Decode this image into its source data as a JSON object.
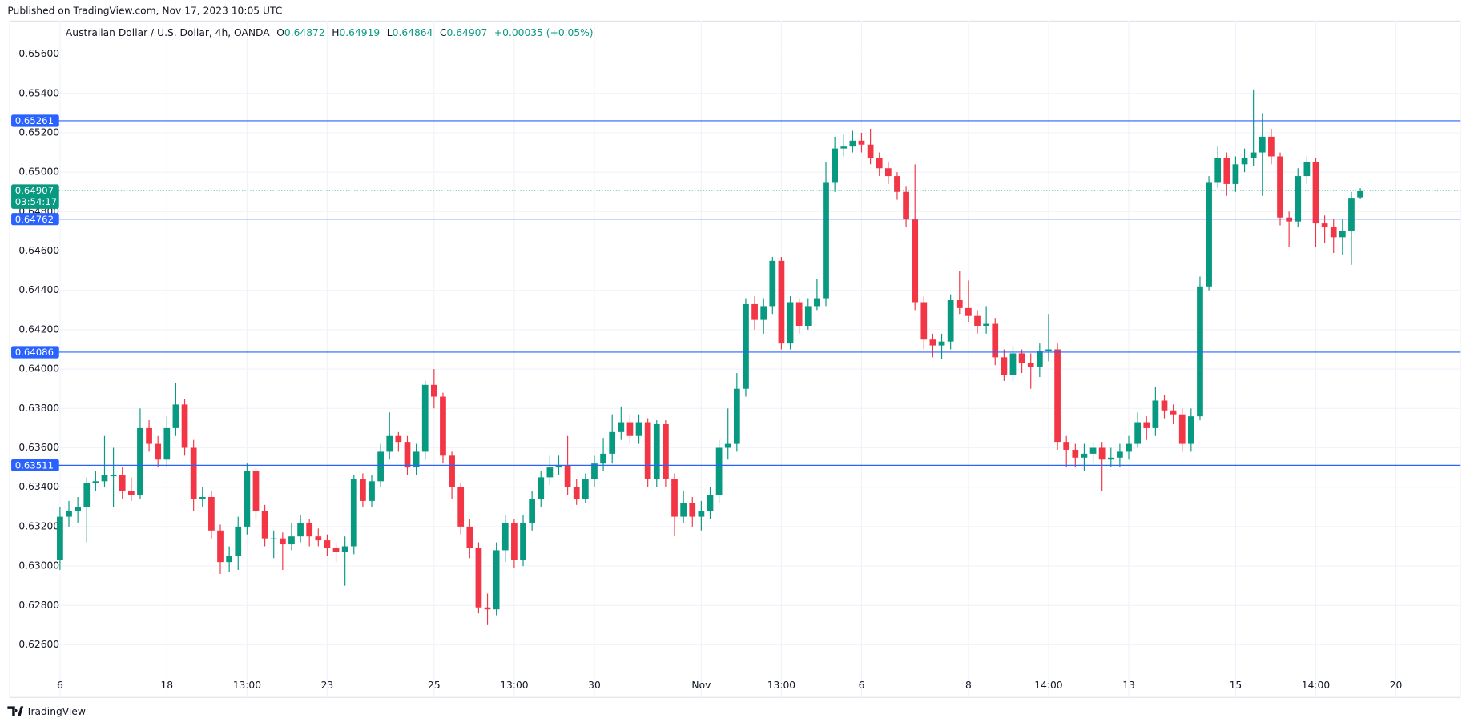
{
  "published": "Published on TradingView.com, Nov 17, 2023 10:05 UTC",
  "footer": "TradingView",
  "chart_data": {
    "type": "candlestick",
    "title": "Australian Dollar / U.S. Dollar, 4h, OANDA",
    "legend": [
      {
        "label": "O",
        "value": "0.64872"
      },
      {
        "label": "H",
        "value": "0.64919"
      },
      {
        "label": "L",
        "value": "0.64864"
      },
      {
        "label": "C",
        "value": "0.64907"
      }
    ],
    "change": "+0.00035 (+0.05%)",
    "up_color": "#089981",
    "down_color": "#f23645",
    "grid": true,
    "ylim": [
      0.6233,
      0.6577
    ],
    "yticks": [
      {
        "value": 0.626,
        "label": "0.62600"
      },
      {
        "value": 0.628,
        "label": "0.62800"
      },
      {
        "value": 0.63,
        "label": "0.63000"
      },
      {
        "value": 0.632,
        "label": "0.63200"
      },
      {
        "value": 0.634,
        "label": "0.63400"
      },
      {
        "value": 0.636,
        "label": "0.63600"
      },
      {
        "value": 0.638,
        "label": "0.63800"
      },
      {
        "value": 0.64,
        "label": "0.64000"
      },
      {
        "value": 0.642,
        "label": "0.64200"
      },
      {
        "value": 0.644,
        "label": "0.64400"
      },
      {
        "value": 0.646,
        "label": "0.64600"
      },
      {
        "value": 0.648,
        "label": "0.64800"
      },
      {
        "value": 0.65,
        "label": "0.65000"
      },
      {
        "value": 0.652,
        "label": "0.65200"
      },
      {
        "value": 0.654,
        "label": "0.65400"
      },
      {
        "value": 0.656,
        "label": "0.65600"
      }
    ],
    "categories": [
      "6",
      null,
      null,
      null,
      null,
      null,
      null,
      null,
      null,
      null,
      null,
      null,
      "18",
      null,
      null,
      null,
      null,
      null,
      null,
      null,
      null,
      "13:00",
      null,
      null,
      null,
      null,
      null,
      null,
      null,
      null,
      "23",
      null,
      null,
      null,
      null,
      null,
      null,
      null,
      null,
      null,
      null,
      null,
      "25",
      null,
      null,
      null,
      null,
      null,
      null,
      null,
      null,
      "13:00",
      null,
      null,
      null,
      null,
      null,
      null,
      null,
      null,
      "30",
      null,
      null,
      null,
      null,
      null,
      null,
      null,
      null,
      null,
      null,
      null,
      "Nov",
      null,
      null,
      null,
      null,
      null,
      null,
      null,
      null,
      "13:00",
      null,
      null,
      null,
      null,
      null,
      null,
      null,
      null,
      "6",
      null,
      null,
      null,
      null,
      null,
      null,
      null,
      null,
      null,
      null,
      null,
      "8",
      null,
      null,
      null,
      null,
      null,
      null,
      null,
      null,
      "14:00",
      null,
      null,
      null,
      null,
      null,
      null,
      null,
      null,
      "13",
      null,
      null,
      null,
      null,
      null,
      null,
      null,
      null,
      null,
      null,
      null,
      "15",
      null,
      null,
      null,
      null,
      null,
      null,
      null,
      null,
      "14:00",
      null,
      null,
      null,
      null,
      null,
      null,
      null,
      null,
      "20"
    ],
    "open": [
      0.6303,
      0.6325,
      0.6328,
      0.633,
      0.6342,
      0.6343,
      0.6346,
      0.6346,
      0.6338,
      0.6336,
      0.637,
      0.6362,
      0.6354,
      0.637,
      0.6382,
      0.636,
      0.6334,
      0.6335,
      0.6318,
      0.6302,
      0.6305,
      0.632,
      0.6348,
      0.6328,
      0.6314,
      0.6314,
      0.6311,
      0.6315,
      0.6322,
      0.6315,
      0.6313,
      0.6309,
      0.6307,
      0.631,
      0.6344,
      0.6333,
      0.6343,
      0.6358,
      0.6366,
      0.6363,
      0.635,
      0.6358,
      0.6392,
      0.6386,
      0.6356,
      0.634,
      0.632,
      0.6309,
      0.6279,
      0.6278,
      0.6308,
      0.6322,
      0.6303,
      0.6322,
      0.6334,
      0.6345,
      0.635,
      0.6351,
      0.634,
      0.6334,
      0.6344,
      0.6352,
      0.6357,
      0.6368,
      0.6373,
      0.6366,
      0.6373,
      0.6344,
      0.6372,
      0.6344,
      0.6325,
      0.6332,
      0.6325,
      0.6328,
      0.6336,
      0.636,
      0.6362,
      0.639,
      0.6433,
      0.6425,
      0.6432,
      0.6455,
      0.6413,
      0.6434,
      0.6422,
      0.6432,
      0.6436,
      0.6495,
      0.6512,
      0.6513,
      0.6516,
      0.6514,
      0.6507,
      0.6502,
      0.6498,
      0.649,
      0.6476,
      0.6434,
      0.6415,
      0.6412,
      0.6414,
      0.6435,
      0.6431,
      0.6427,
      0.6422,
      0.6423,
      0.6406,
      0.6397,
      0.6408,
      0.6403,
      0.6401,
      0.6409,
      0.641,
      0.6363,
      0.6359,
      0.6355,
      0.6357,
      0.636,
      0.6354,
      0.6355,
      0.6358,
      0.6362,
      0.6373,
      0.637,
      0.6384,
      0.6379,
      0.6377,
      0.6362,
      0.6376,
      0.6442,
      0.6495,
      0.6507,
      0.6494,
      0.6504,
      0.6507,
      0.651,
      0.6518,
      0.6508,
      0.6477,
      0.6475,
      0.6498,
      0.6505,
      0.6474,
      0.6472,
      0.6467,
      0.647,
      0.64872,
      null,
      null,
      null,
      null
    ],
    "high": [
      0.633,
      0.6333,
      0.6335,
      0.6345,
      0.6348,
      0.6366,
      0.636,
      0.635,
      0.6345,
      0.638,
      0.6374,
      0.6366,
      0.6376,
      0.6393,
      0.6385,
      0.6364,
      0.634,
      0.6338,
      0.6321,
      0.631,
      0.6325,
      0.6352,
      0.635,
      0.6331,
      0.6318,
      0.6317,
      0.6322,
      0.6326,
      0.6324,
      0.6319,
      0.6316,
      0.6312,
      0.6315,
      0.6346,
      0.6347,
      0.6346,
      0.6362,
      0.6378,
      0.6368,
      0.6366,
      0.6362,
      0.6394,
      0.64,
      0.6388,
      0.6358,
      0.6342,
      0.6324,
      0.6312,
      0.6286,
      0.6312,
      0.6326,
      0.6324,
      0.6326,
      0.6338,
      0.6348,
      0.6356,
      0.6356,
      0.6366,
      0.6344,
      0.6347,
      0.6356,
      0.6365,
      0.6377,
      0.6381,
      0.6377,
      0.6377,
      0.6375,
      0.6374,
      0.6374,
      0.6347,
      0.6338,
      0.6335,
      0.6333,
      0.634,
      0.6364,
      0.638,
      0.6398,
      0.6436,
      0.6437,
      0.6436,
      0.6457,
      0.6457,
      0.6437,
      0.6436,
      0.6436,
      0.6446,
      0.6505,
      0.6518,
      0.6519,
      0.6521,
      0.652,
      0.6522,
      0.651,
      0.6505,
      0.65,
      0.6493,
      0.6504,
      0.6437,
      0.6418,
      0.6418,
      0.6438,
      0.645,
      0.6445,
      0.643,
      0.6432,
      0.6426,
      0.641,
      0.6412,
      0.641,
      0.6408,
      0.6413,
      0.6428,
      0.6413,
      0.6366,
      0.6362,
      0.6362,
      0.6363,
      0.6363,
      0.636,
      0.6362,
      0.6366,
      0.6378,
      0.6376,
      0.6391,
      0.6387,
      0.6382,
      0.638,
      0.638,
      0.6447,
      0.6498,
      0.6513,
      0.651,
      0.6508,
      0.6512,
      0.6542,
      0.653,
      0.6522,
      0.651,
      0.648,
      0.6502,
      0.6508,
      0.6507,
      0.6478,
      0.6476,
      0.6476,
      0.649,
      0.64919,
      null,
      null,
      null,
      null
    ],
    "low": [
      0.6298,
      0.632,
      0.6322,
      0.6312,
      0.6338,
      0.634,
      0.633,
      0.6334,
      0.6333,
      0.6334,
      0.6358,
      0.635,
      0.635,
      0.6366,
      0.6356,
      0.6328,
      0.633,
      0.6314,
      0.6296,
      0.6297,
      0.6298,
      0.6316,
      0.6324,
      0.631,
      0.6304,
      0.6298,
      0.6308,
      0.6312,
      0.631,
      0.631,
      0.6305,
      0.6302,
      0.629,
      0.6306,
      0.633,
      0.633,
      0.634,
      0.6354,
      0.6358,
      0.6346,
      0.6346,
      0.6354,
      0.638,
      0.6352,
      0.6334,
      0.6316,
      0.6304,
      0.6276,
      0.627,
      0.6275,
      0.6302,
      0.6299,
      0.63,
      0.6318,
      0.633,
      0.6341,
      0.6346,
      0.6336,
      0.6331,
      0.6332,
      0.634,
      0.6348,
      0.6352,
      0.6364,
      0.6362,
      0.6362,
      0.634,
      0.634,
      0.634,
      0.6315,
      0.6322,
      0.632,
      0.6318,
      0.6324,
      0.6332,
      0.6354,
      0.6358,
      0.6386,
      0.642,
      0.6418,
      0.6428,
      0.641,
      0.641,
      0.6418,
      0.642,
      0.643,
      0.6432,
      0.649,
      0.6508,
      0.651,
      0.651,
      0.6504,
      0.6498,
      0.6494,
      0.6486,
      0.6472,
      0.643,
      0.641,
      0.6406,
      0.6405,
      0.641,
      0.6428,
      0.6424,
      0.6418,
      0.6418,
      0.6402,
      0.6394,
      0.6394,
      0.6398,
      0.639,
      0.6396,
      0.6404,
      0.6359,
      0.635,
      0.635,
      0.6348,
      0.6352,
      0.6338,
      0.635,
      0.635,
      0.6354,
      0.636,
      0.6364,
      0.6366,
      0.6375,
      0.6372,
      0.6358,
      0.6358,
      0.6374,
      0.644,
      0.6492,
      0.6488,
      0.649,
      0.65,
      0.6503,
      0.6488,
      0.6504,
      0.6473,
      0.6462,
      0.6472,
      0.6494,
      0.6462,
      0.6464,
      0.6459,
      0.6458,
      0.6453,
      0.64864,
      null,
      null,
      null,
      null
    ],
    "close": [
      0.6325,
      0.6328,
      0.633,
      0.6342,
      0.6343,
      0.6346,
      0.6346,
      0.6338,
      0.6336,
      0.637,
      0.6362,
      0.6354,
      0.637,
      0.6382,
      0.636,
      0.6334,
      0.6335,
      0.6318,
      0.6302,
      0.6305,
      0.632,
      0.6348,
      0.6328,
      0.6314,
      0.6314,
      0.6311,
      0.6315,
      0.6322,
      0.6315,
      0.6313,
      0.6309,
      0.6307,
      0.631,
      0.6344,
      0.6333,
      0.6343,
      0.6358,
      0.6366,
      0.6363,
      0.635,
      0.6358,
      0.6392,
      0.6386,
      0.6356,
      0.634,
      0.632,
      0.6309,
      0.6279,
      0.6278,
      0.6308,
      0.6322,
      0.6303,
      0.6322,
      0.6334,
      0.6345,
      0.635,
      0.6351,
      0.634,
      0.6334,
      0.6344,
      0.6352,
      0.6357,
      0.6368,
      0.6373,
      0.6366,
      0.6373,
      0.6344,
      0.6372,
      0.6344,
      0.6325,
      0.6332,
      0.6325,
      0.6328,
      0.6336,
      0.636,
      0.6362,
      0.639,
      0.6433,
      0.6425,
      0.6432,
      0.6455,
      0.6413,
      0.6434,
      0.6422,
      0.6432,
      0.6436,
      0.6495,
      0.6512,
      0.6513,
      0.6516,
      0.6514,
      0.6507,
      0.6502,
      0.6498,
      0.649,
      0.6476,
      0.6434,
      0.6415,
      0.6412,
      0.6414,
      0.6435,
      0.6431,
      0.6427,
      0.6422,
      0.6423,
      0.6406,
      0.6397,
      0.6408,
      0.6403,
      0.6401,
      0.6409,
      0.641,
      0.6363,
      0.6359,
      0.6355,
      0.6357,
      0.636,
      0.6354,
      0.6355,
      0.6358,
      0.6362,
      0.6373,
      0.637,
      0.6384,
      0.6379,
      0.6377,
      0.6362,
      0.6376,
      0.6442,
      0.6495,
      0.6507,
      0.6494,
      0.6504,
      0.6507,
      0.651,
      0.6518,
      0.6508,
      0.6477,
      0.6475,
      0.6498,
      0.6505,
      0.6474,
      0.6472,
      0.6467,
      0.647,
      0.6487,
      0.64907,
      null,
      null,
      null,
      null
    ],
    "hlines": {
      "color": "#2962ff",
      "values": [
        0.65261,
        0.64762,
        0.64086,
        0.63511
      ]
    },
    "last_price": {
      "value": 0.64907,
      "countdown": "03:54:17",
      "color": "#089981"
    }
  }
}
